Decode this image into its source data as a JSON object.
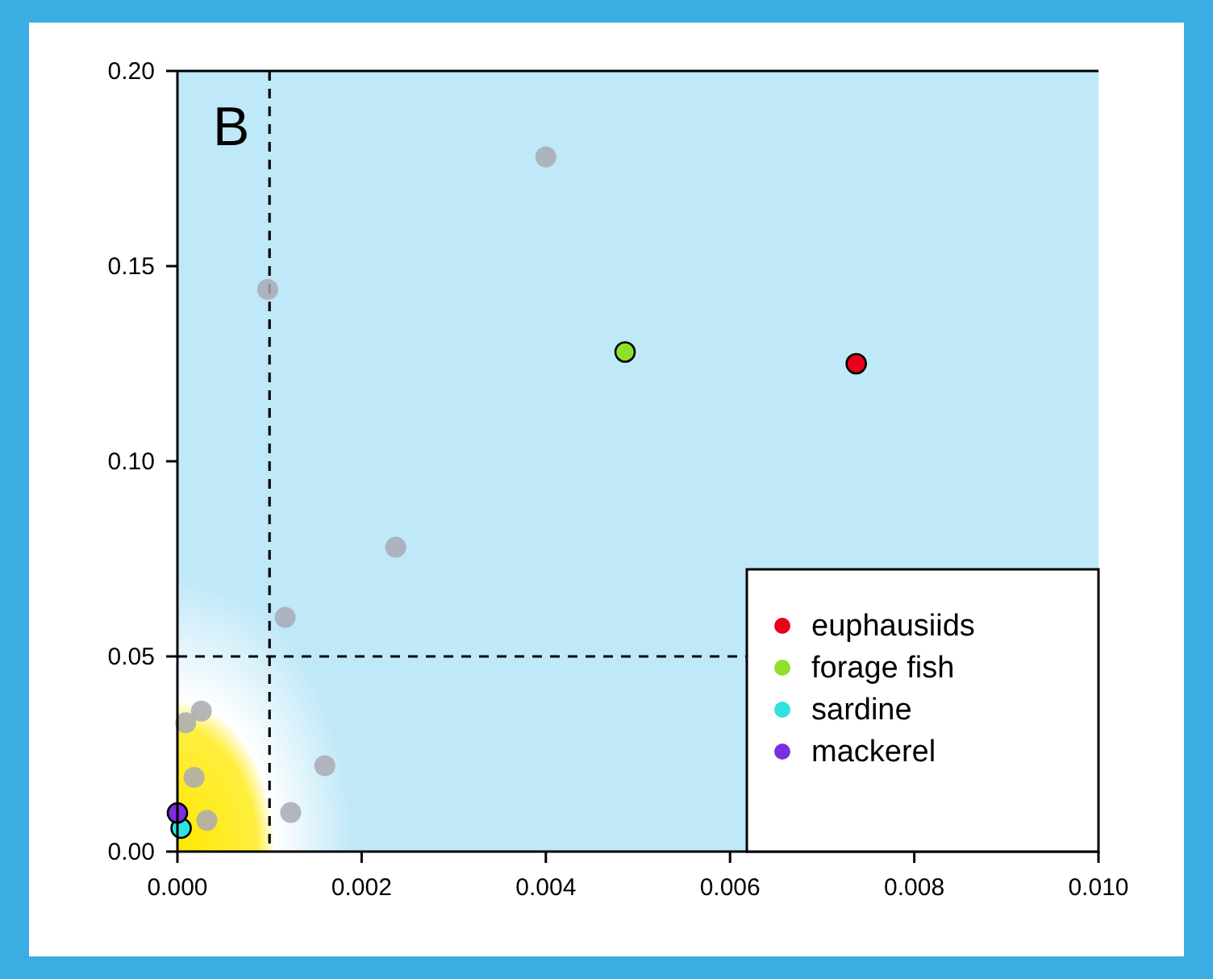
{
  "chart_data": {
    "type": "scatter",
    "annotations": [
      "B"
    ],
    "xlim": [
      0,
      0.01
    ],
    "ylim": [
      0,
      0.2
    ],
    "xticks": [
      {
        "value": 0,
        "label": "0.000"
      },
      {
        "value": 0.002,
        "label": "0.002"
      },
      {
        "value": 0.004,
        "label": "0.004"
      },
      {
        "value": 0.006,
        "label": "0.006"
      },
      {
        "value": 0.008,
        "label": "0.008"
      },
      {
        "value": 0.01,
        "label": "0.010"
      }
    ],
    "yticks": [
      {
        "value": 0,
        "label": "0.00"
      },
      {
        "value": 0.05,
        "label": "0.05"
      },
      {
        "value": 0.1,
        "label": "0.10"
      },
      {
        "value": 0.15,
        "label": "0.15"
      },
      {
        "value": 0.2,
        "label": "0.20"
      }
    ],
    "ref_lines": [
      {
        "axis": "x",
        "value": 0.001,
        "line_style": "dashed",
        "color": "#000000"
      },
      {
        "axis": "y",
        "value": 0.05,
        "line_style": "dashed",
        "color": "#000000"
      }
    ],
    "marker": "circle",
    "legend": "bottom right",
    "grid": false,
    "series": [
      {
        "color": "#a9a9b4",
        "x": [
          0.004,
          0.00098,
          0.00237,
          0.00117,
          0.00026,
          9e-05,
          0.0016,
          0.00018,
          0.00123,
          0.00032
        ],
        "values": [
          0.178,
          0.144,
          0.078,
          0.06,
          0.036,
          0.033,
          0.022,
          0.019,
          0.01,
          0.008
        ]
      },
      {
        "name": "euphausiids",
        "color": "#e8001c",
        "x": [
          0.00737
        ],
        "values": [
          0.125
        ]
      },
      {
        "name": "forage fish",
        "color": "#8ee02a",
        "x": [
          0.00486
        ],
        "values": [
          0.128
        ]
      },
      {
        "name": "sardine",
        "color": "#33e0e0",
        "x": [
          4e-05
        ],
        "values": [
          0.006
        ]
      },
      {
        "name": "mackerel",
        "color": "#7a2ee0",
        "x": [
          0
        ],
        "values": [
          0.0099
        ]
      }
    ]
  }
}
